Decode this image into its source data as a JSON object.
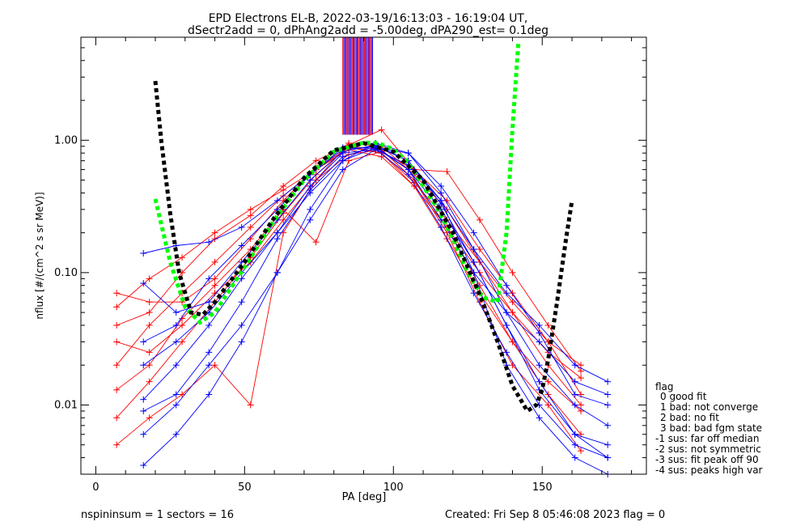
{
  "title_line1": "EPD Electrons EL-B, 2022-03-19/16:13:03 - 16:19:04 UT,",
  "title_line2": "dSectr2add = 0, dPhAng2add = -5.00deg, dPA290_est=   0.1deg",
  "footer_left": "nspininsum =  1  sectors = 16",
  "footer_right": "Created: Fri Sep  8 05:46:08 2023   flag = 0",
  "legend": {
    "title": "flag",
    "items": [
      "0 good fit",
      "1 bad: not converge",
      "2 bad: no fit",
      "3 bad: bad fgm state",
      "-1 sus: far off median",
      "-2 sus: not symmetric",
      "-3 sus: fit peak off 90",
      "-4 sus: peaks high var"
    ]
  },
  "chart_data": {
    "type": "line",
    "xlabel": "PA [deg]",
    "ylabel": "nflux [#/(cm^2 s sr MeV)]",
    "xlim": [
      -5,
      185
    ],
    "ylim": [
      0.003,
      6.0
    ],
    "yscale": "log",
    "xticks": [
      0,
      50,
      100,
      150
    ],
    "xtick_labels": [
      "0",
      "50",
      "100",
      "150"
    ],
    "yticks": [
      0.01,
      0.1,
      1.0
    ],
    "ytick_labels": [
      "0.01",
      "0.10",
      "1.00"
    ],
    "colors": {
      "red_sectors": "#ff0000",
      "blue_sectors": "#0000ff",
      "fit_green": "#00ff00",
      "fit_black": "#000000"
    },
    "series": [
      {
        "color": "red",
        "x": [
          7,
          18,
          29,
          40,
          52,
          63,
          74,
          85,
          96,
          107,
          118,
          129,
          140,
          152,
          163
        ],
        "y": [
          0.055,
          0.09,
          0.13,
          0.2,
          0.3,
          0.42,
          0.6,
          0.85,
          0.75,
          0.45,
          0.22,
          0.1,
          0.05,
          0.025,
          0.016
        ]
      },
      {
        "color": "red",
        "x": [
          7,
          18,
          29,
          40,
          52,
          63,
          74,
          85,
          96,
          107,
          118,
          129,
          140,
          152,
          163
        ],
        "y": [
          0.02,
          0.04,
          0.07,
          0.12,
          0.22,
          0.38,
          0.6,
          0.88,
          0.8,
          0.45,
          0.18,
          0.07,
          0.03,
          0.015,
          0.009
        ]
      },
      {
        "color": "red",
        "x": [
          7,
          18,
          29,
          40,
          52,
          63,
          74,
          85,
          96,
          107,
          118,
          129,
          140,
          152,
          163
        ],
        "y": [
          0.008,
          0.015,
          0.03,
          0.06,
          0.13,
          0.28,
          0.55,
          0.9,
          0.85,
          0.5,
          0.22,
          0.08,
          0.03,
          0.012,
          0.006
        ]
      },
      {
        "color": "red",
        "x": [
          7,
          18,
          29,
          40,
          52,
          63,
          74,
          85,
          96,
          107,
          118,
          129,
          140,
          152,
          163
        ],
        "y": [
          0.07,
          0.06,
          0.06,
          0.09,
          0.18,
          0.35,
          0.62,
          0.9,
          0.8,
          0.48,
          0.25,
          0.12,
          0.06,
          0.03,
          0.02
        ]
      },
      {
        "color": "red",
        "x": [
          7,
          18,
          29,
          40,
          52,
          63,
          74,
          85,
          96,
          107,
          118,
          129,
          140,
          152,
          163
        ],
        "y": [
          0.005,
          0.008,
          0.012,
          0.02,
          0.01,
          0.2,
          0.5,
          0.95,
          0.9,
          0.55,
          0.3,
          0.12,
          0.05,
          0.02,
          0.01
        ]
      },
      {
        "color": "red",
        "x": [
          7,
          18,
          29,
          40,
          52,
          63,
          74,
          85,
          96,
          107,
          118,
          129,
          140,
          152,
          163
        ],
        "y": [
          0.04,
          0.05,
          0.1,
          0.18,
          0.27,
          0.45,
          0.7,
          0.92,
          1.2,
          0.6,
          0.58,
          0.25,
          0.1,
          0.04,
          0.018
        ]
      },
      {
        "color": "red",
        "x": [
          7,
          18,
          29,
          40,
          52,
          63,
          74,
          85,
          96,
          107,
          118,
          129,
          140,
          152,
          163
        ],
        "y": [
          0.013,
          0.02,
          0.045,
          0.08,
          0.15,
          0.3,
          0.17,
          0.7,
          0.82,
          0.6,
          0.35,
          0.15,
          0.07,
          0.03,
          0.012
        ]
      },
      {
        "color": "red",
        "x": [
          7,
          18,
          29,
          40,
          52,
          63,
          74,
          85,
          96,
          107,
          118,
          129,
          140,
          152,
          163
        ],
        "y": [
          0.03,
          0.025,
          0.04,
          0.07,
          0.12,
          0.25,
          0.5,
          0.78,
          0.85,
          0.5,
          0.2,
          0.06,
          0.02,
          0.01,
          0.0045
        ]
      },
      {
        "color": "blue",
        "x": [
          16,
          27,
          38,
          49,
          61,
          72,
          83,
          94,
          105,
          116,
          127,
          138,
          149,
          161,
          172
        ],
        "y": [
          0.14,
          0.16,
          0.17,
          0.22,
          0.35,
          0.55,
          0.85,
          0.9,
          0.6,
          0.25,
          0.1,
          0.05,
          0.03,
          0.015,
          0.012
        ]
      },
      {
        "color": "blue",
        "x": [
          16,
          27,
          38,
          49,
          61,
          72,
          83,
          94,
          105,
          116,
          127,
          138,
          149,
          161,
          172
        ],
        "y": [
          0.011,
          0.02,
          0.04,
          0.09,
          0.2,
          0.45,
          0.8,
          0.85,
          0.55,
          0.22,
          0.07,
          0.025,
          0.01,
          0.005,
          0.004
        ]
      },
      {
        "color": "blue",
        "x": [
          16,
          27,
          38,
          49,
          61,
          72,
          83,
          94,
          105,
          116,
          127,
          138,
          149,
          161,
          172
        ],
        "y": [
          0.0035,
          0.006,
          0.012,
          0.03,
          0.1,
          0.3,
          0.7,
          0.88,
          0.6,
          0.3,
          0.12,
          0.04,
          0.015,
          0.006,
          0.004
        ]
      },
      {
        "color": "blue",
        "x": [
          16,
          27,
          38,
          49,
          61,
          72,
          83,
          94,
          105,
          116,
          127,
          138,
          149,
          161,
          172
        ],
        "y": [
          0.083,
          0.05,
          0.06,
          0.12,
          0.25,
          0.5,
          0.82,
          0.92,
          0.7,
          0.35,
          0.15,
          0.07,
          0.04,
          0.02,
          0.015
        ]
      },
      {
        "color": "blue",
        "x": [
          16,
          27,
          38,
          49,
          61,
          72,
          83,
          94,
          105,
          116,
          127,
          138,
          149,
          161,
          172
        ],
        "y": [
          0.02,
          0.03,
          0.05,
          0.1,
          0.2,
          0.4,
          0.7,
          0.95,
          0.8,
          0.4,
          0.15,
          0.05,
          0.02,
          0.01,
          0.007
        ]
      },
      {
        "color": "blue",
        "x": [
          16,
          27,
          38,
          49,
          61,
          72,
          83,
          94,
          105,
          116,
          127,
          138,
          149,
          161,
          172
        ],
        "y": [
          0.009,
          0.012,
          0.025,
          0.06,
          0.18,
          0.42,
          0.75,
          0.9,
          0.7,
          0.33,
          0.12,
          0.04,
          0.013,
          0.006,
          0.005
        ]
      },
      {
        "color": "blue",
        "x": [
          16,
          27,
          38,
          49,
          61,
          72,
          83,
          94,
          105,
          116,
          127,
          138,
          149,
          161,
          172
        ],
        "y": [
          0.03,
          0.04,
          0.09,
          0.16,
          0.3,
          0.55,
          0.88,
          0.87,
          0.8,
          0.45,
          0.2,
          0.08,
          0.035,
          0.012,
          0.01
        ]
      },
      {
        "color": "blue",
        "x": [
          16,
          27,
          38,
          49,
          61,
          72,
          83,
          94,
          105,
          116,
          127,
          138,
          149,
          161,
          172
        ],
        "y": [
          0.006,
          0.01,
          0.02,
          0.04,
          0.1,
          0.25,
          0.6,
          0.85,
          0.65,
          0.35,
          0.1,
          0.02,
          0.008,
          0.004,
          0.003
        ]
      }
    ],
    "fit_green": {
      "x": [
        20,
        25,
        30,
        35,
        40,
        50,
        60,
        70,
        80,
        90,
        95,
        100,
        105,
        110,
        115,
        120,
        125,
        130,
        135,
        138,
        140,
        142
      ],
      "y": [
        0.36,
        0.12,
        0.055,
        0.042,
        0.05,
        0.11,
        0.25,
        0.5,
        0.82,
        0.96,
        0.95,
        0.85,
        0.68,
        0.45,
        0.3,
        0.18,
        0.1,
        0.065,
        0.06,
        0.2,
        1.2,
        5.5
      ]
    },
    "fit_black": {
      "x": [
        20,
        22,
        25,
        28,
        32,
        36,
        40,
        50,
        60,
        70,
        80,
        90,
        100,
        110,
        120,
        130,
        135,
        140,
        145,
        148,
        150,
        152,
        155,
        158,
        160
      ],
      "y": [
        2.8,
        1.0,
        0.28,
        0.1,
        0.05,
        0.048,
        0.06,
        0.12,
        0.26,
        0.52,
        0.84,
        0.95,
        0.82,
        0.5,
        0.2,
        0.06,
        0.03,
        0.014,
        0.009,
        0.01,
        0.013,
        0.022,
        0.06,
        0.18,
        0.35
      ]
    },
    "vertical_spikes": {
      "x_start": 83,
      "x_end": 93,
      "count": 30,
      "y_bottom": 1.1,
      "y_top": 6.0
    }
  }
}
